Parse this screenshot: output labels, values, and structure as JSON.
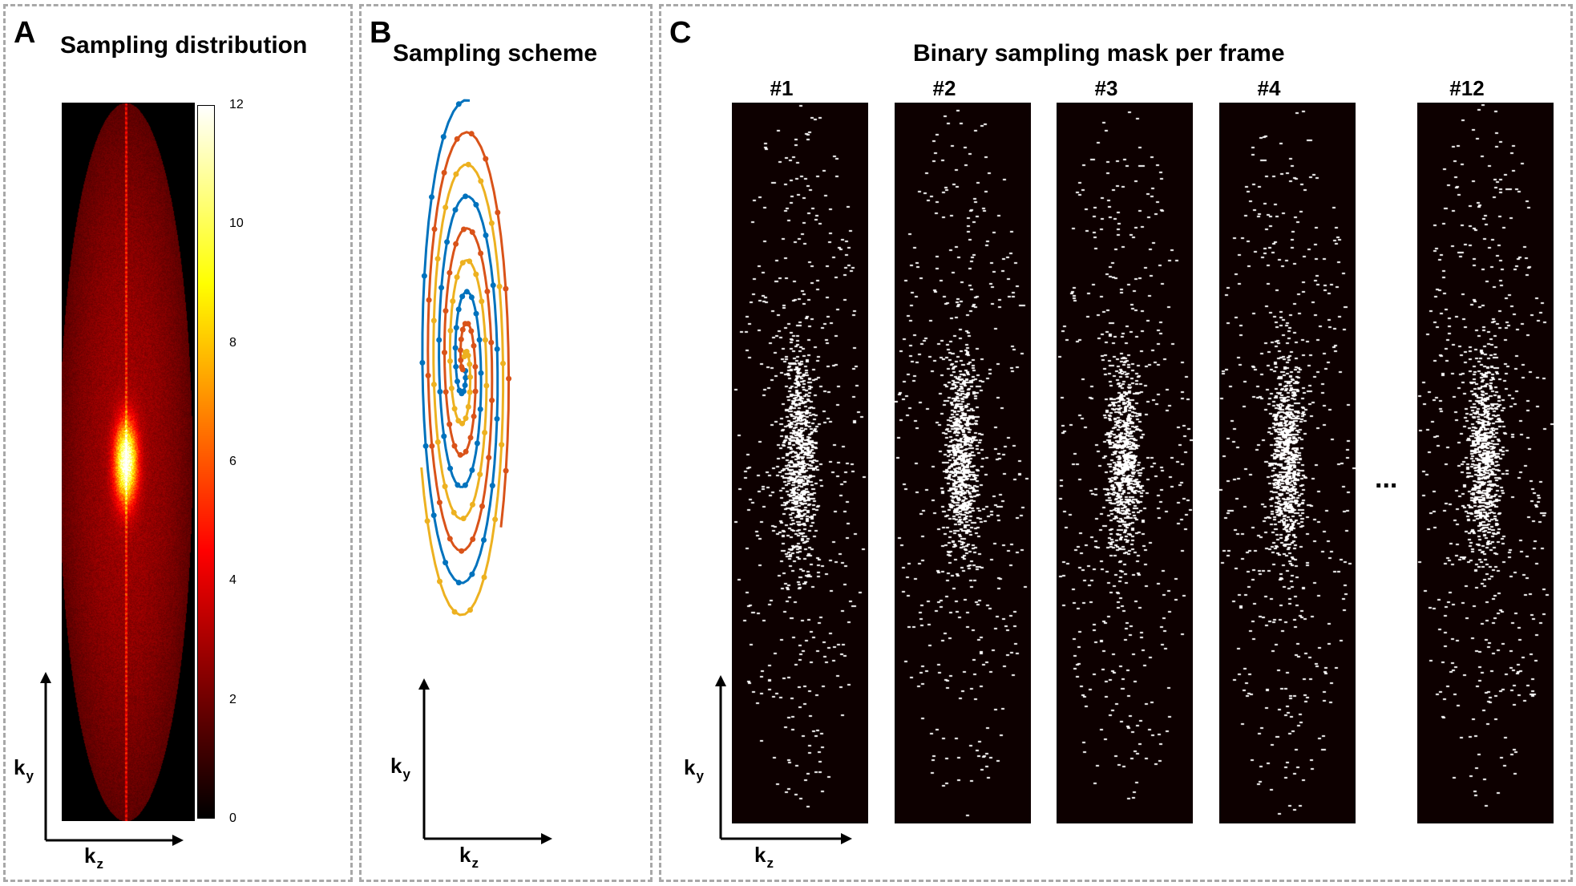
{
  "panels": {
    "a": {
      "letter": "A",
      "title": "Sampling distribution"
    },
    "b": {
      "letter": "B",
      "title": "Sampling scheme"
    },
    "c": {
      "letter": "C",
      "title": "Binary sampling mask per frame"
    }
  },
  "axes": {
    "y_label": "k",
    "y_sub": "y",
    "x_label": "k",
    "x_sub": "z"
  },
  "colorbar": {
    "ticks": [
      "12",
      "10",
      "8",
      "6",
      "4",
      "2",
      "0"
    ],
    "min": 0,
    "max": 12,
    "colormap": "hot"
  },
  "scheme": {
    "series_colors": [
      "#0072BD",
      "#D95319",
      "#EDB120"
    ]
  },
  "masks": {
    "frames": [
      "#1",
      "#2",
      "#3",
      "#4",
      "#12"
    ],
    "ellipsis": "..."
  }
}
